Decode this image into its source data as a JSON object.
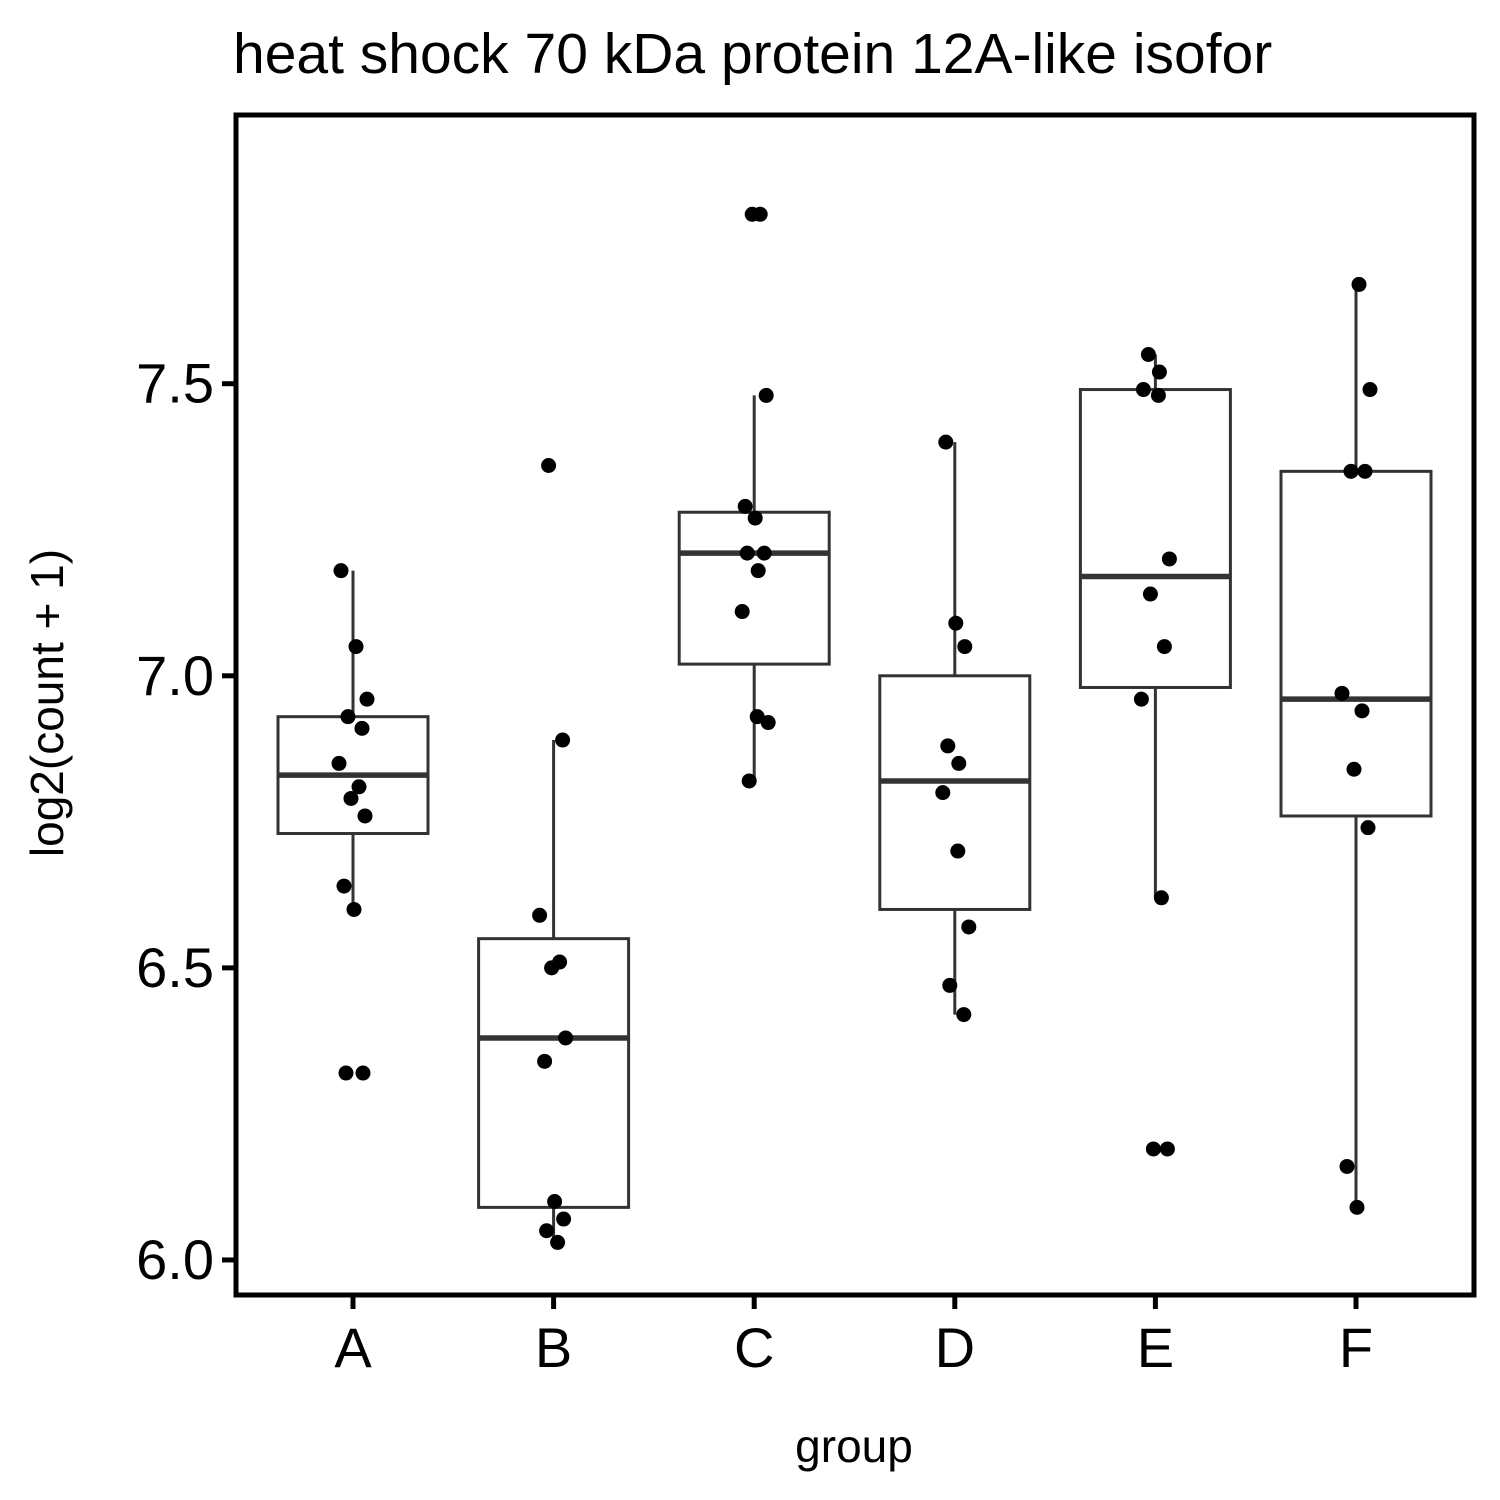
{
  "chart_data": {
    "type": "box",
    "title": "heat shock 70 kDa protein 12A-like isofor",
    "xlabel": "group",
    "ylabel": "log2(count + 1)",
    "categories": [
      "A",
      "B",
      "C",
      "D",
      "E",
      "F"
    ],
    "ylim": [
      5.94,
      7.96
    ],
    "yticks": [
      6.0,
      6.5,
      7.0,
      7.5
    ],
    "ytick_labels": [
      "6.0",
      "6.5",
      "7.0",
      "7.5"
    ],
    "grid": false,
    "legend": "none",
    "boxes": [
      {
        "group": "A",
        "whisker_low": 6.6,
        "q1": 6.73,
        "median": 6.83,
        "q3": 6.93,
        "whisker_high": 7.18
      },
      {
        "group": "B",
        "whisker_low": 6.03,
        "q1": 6.09,
        "median": 6.38,
        "q3": 6.55,
        "whisker_high": 6.89
      },
      {
        "group": "C",
        "whisker_low": 6.82,
        "q1": 7.02,
        "median": 7.21,
        "q3": 7.28,
        "whisker_high": 7.48
      },
      {
        "group": "D",
        "whisker_low": 6.42,
        "q1": 6.6,
        "median": 6.82,
        "q3": 7.0,
        "whisker_high": 7.4
      },
      {
        "group": "E",
        "whisker_low": 6.62,
        "q1": 6.98,
        "median": 7.17,
        "q3": 7.49,
        "whisker_high": 7.55
      },
      {
        "group": "F",
        "whisker_low": 6.09,
        "q1": 6.76,
        "median": 6.96,
        "q3": 7.35,
        "whisker_high": 7.67
      }
    ],
    "points": [
      {
        "group": "A",
        "y": 7.18
      },
      {
        "group": "A",
        "y": 7.05
      },
      {
        "group": "A",
        "y": 6.96
      },
      {
        "group": "A",
        "y": 6.93
      },
      {
        "group": "A",
        "y": 6.91
      },
      {
        "group": "A",
        "y": 6.85
      },
      {
        "group": "A",
        "y": 6.81
      },
      {
        "group": "A",
        "y": 6.79
      },
      {
        "group": "A",
        "y": 6.76
      },
      {
        "group": "A",
        "y": 6.64
      },
      {
        "group": "A",
        "y": 6.6
      },
      {
        "group": "A",
        "y": 6.32
      },
      {
        "group": "A",
        "y": 6.32
      },
      {
        "group": "B",
        "y": 7.36
      },
      {
        "group": "B",
        "y": 6.89
      },
      {
        "group": "B",
        "y": 6.59
      },
      {
        "group": "B",
        "y": 6.51
      },
      {
        "group": "B",
        "y": 6.5
      },
      {
        "group": "B",
        "y": 6.38
      },
      {
        "group": "B",
        "y": 6.34
      },
      {
        "group": "B",
        "y": 6.1
      },
      {
        "group": "B",
        "y": 6.07
      },
      {
        "group": "B",
        "y": 6.05
      },
      {
        "group": "B",
        "y": 6.03
      },
      {
        "group": "C",
        "y": 7.79
      },
      {
        "group": "C",
        "y": 7.79
      },
      {
        "group": "C",
        "y": 7.48
      },
      {
        "group": "C",
        "y": 7.29
      },
      {
        "group": "C",
        "y": 7.27
      },
      {
        "group": "C",
        "y": 7.21
      },
      {
        "group": "C",
        "y": 7.21
      },
      {
        "group": "C",
        "y": 7.18
      },
      {
        "group": "C",
        "y": 7.11
      },
      {
        "group": "C",
        "y": 6.93
      },
      {
        "group": "C",
        "y": 6.92
      },
      {
        "group": "C",
        "y": 6.82
      },
      {
        "group": "D",
        "y": 7.4
      },
      {
        "group": "D",
        "y": 7.09
      },
      {
        "group": "D",
        "y": 7.05
      },
      {
        "group": "D",
        "y": 6.88
      },
      {
        "group": "D",
        "y": 6.85
      },
      {
        "group": "D",
        "y": 6.8
      },
      {
        "group": "D",
        "y": 6.7
      },
      {
        "group": "D",
        "y": 6.57
      },
      {
        "group": "D",
        "y": 6.47
      },
      {
        "group": "D",
        "y": 6.42
      },
      {
        "group": "E",
        "y": 7.55
      },
      {
        "group": "E",
        "y": 7.52
      },
      {
        "group": "E",
        "y": 7.49
      },
      {
        "group": "E",
        "y": 7.48
      },
      {
        "group": "E",
        "y": 7.2
      },
      {
        "group": "E",
        "y": 7.14
      },
      {
        "group": "E",
        "y": 7.05
      },
      {
        "group": "E",
        "y": 6.96
      },
      {
        "group": "E",
        "y": 6.62
      },
      {
        "group": "E",
        "y": 6.19
      },
      {
        "group": "E",
        "y": 6.19
      },
      {
        "group": "F",
        "y": 7.67
      },
      {
        "group": "F",
        "y": 7.49
      },
      {
        "group": "F",
        "y": 7.35
      },
      {
        "group": "F",
        "y": 7.35
      },
      {
        "group": "F",
        "y": 6.97
      },
      {
        "group": "F",
        "y": 6.94
      },
      {
        "group": "F",
        "y": 6.84
      },
      {
        "group": "F",
        "y": 6.74
      },
      {
        "group": "F",
        "y": 6.16
      },
      {
        "group": "F",
        "y": 6.09
      }
    ]
  }
}
